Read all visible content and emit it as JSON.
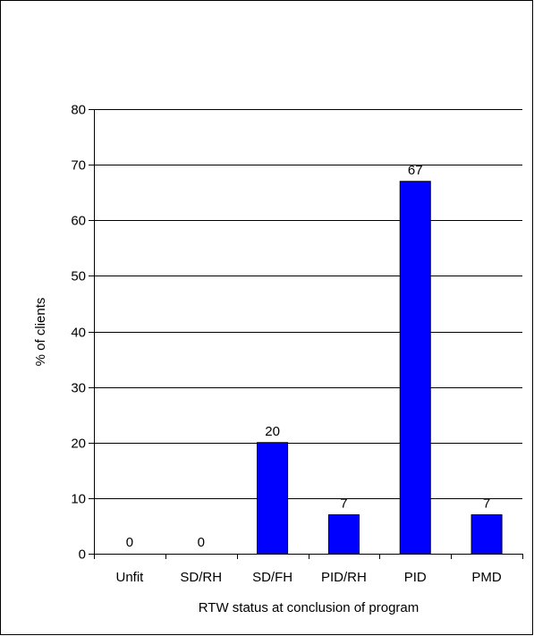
{
  "chart_data": {
    "type": "bar",
    "categories": [
      "Unfit",
      "SD/RH",
      "SD/FH",
      "PID/RH",
      "PID",
      "PMD"
    ],
    "values": [
      0,
      0,
      20,
      7,
      67,
      7
    ],
    "data_labels": [
      "0",
      "0",
      "20",
      "7",
      "67",
      "7"
    ],
    "xlabel": "RTW status at conclusion of program",
    "ylabel": "% of clients",
    "ylim": [
      0,
      80
    ],
    "yticks": [
      0,
      10,
      20,
      30,
      40,
      50,
      60,
      70,
      80
    ],
    "grid": true,
    "legend": "none",
    "bar_color": "#0000FF",
    "bar_edge_color": "#000000"
  }
}
